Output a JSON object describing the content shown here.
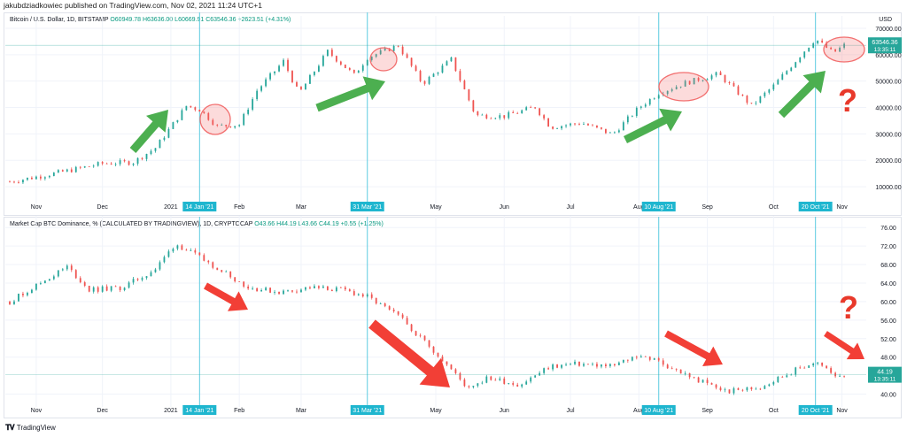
{
  "publisher": "jakubdziadkowiec published on TradingView.com, Nov 02, 2021 11:24 UTC+1",
  "footer": {
    "brand": "TradingView",
    "logo": "tradingview-logo-icon"
  },
  "colors": {
    "up": "#26a69a",
    "down": "#ef5350",
    "vline": "#5ccbe0",
    "tag_bg": "#1fb6cf",
    "arrow_green": "#4caf50",
    "arrow_red": "#f23f36",
    "circle": "#f26f6f",
    "question": "#e8392b"
  },
  "chart_data": [
    {
      "type": "candlestick",
      "title": "Bitcoin / U.S. Dollar, 1D, BITSTAMP",
      "ohlc": {
        "open": "O60949.78",
        "high": "H63636.00",
        "low": "L60669.91",
        "close": "C63546.36",
        "change": "+2623.51 (+4.31%)"
      },
      "yaxis_unit": "USD",
      "ylim": [
        5000,
        72000
      ],
      "yticks": [
        "70000.00",
        "60000.00",
        "50000.00",
        "40000.00",
        "30000.00",
        "20000.00",
        "10000.00"
      ],
      "ytick_values": [
        70000,
        60000,
        50000,
        40000,
        30000,
        20000,
        10000
      ],
      "last_price": {
        "value": "63546.36",
        "time": "13:35:11"
      },
      "xticks": [
        "Nov",
        "Dec",
        "2021",
        "Feb",
        "Mar",
        "May",
        "Jun",
        "Jul",
        "Aug",
        "Sep",
        "Oct",
        "Nov"
      ],
      "date_tags": [
        "14 Jan '21",
        "31 Mar '21",
        "10 Aug '21",
        "20 Oct '21"
      ],
      "series_close": [
        {
          "date": "2020-10-20",
          "close": 11900
        },
        {
          "date": "2020-11-01",
          "close": 13700
        },
        {
          "date": "2020-11-15",
          "close": 16000
        },
        {
          "date": "2020-12-01",
          "close": 18800
        },
        {
          "date": "2020-12-15",
          "close": 19300
        },
        {
          "date": "2020-12-25",
          "close": 24700
        },
        {
          "date": "2021-01-08",
          "close": 40600
        },
        {
          "date": "2021-01-14",
          "close": 39200
        },
        {
          "date": "2021-01-22",
          "close": 32900
        },
        {
          "date": "2021-02-01",
          "close": 33500
        },
        {
          "date": "2021-02-09",
          "close": 46400
        },
        {
          "date": "2021-02-21",
          "close": 57500
        },
        {
          "date": "2021-02-28",
          "close": 45200
        },
        {
          "date": "2021-03-13",
          "close": 61200
        },
        {
          "date": "2021-03-25",
          "close": 52300
        },
        {
          "date": "2021-03-31",
          "close": 58900
        },
        {
          "date": "2021-04-14",
          "close": 63500
        },
        {
          "date": "2021-04-25",
          "close": 49000
        },
        {
          "date": "2021-05-08",
          "close": 58200
        },
        {
          "date": "2021-05-19",
          "close": 37000
        },
        {
          "date": "2021-06-01",
          "close": 36700
        },
        {
          "date": "2021-06-15",
          "close": 40200
        },
        {
          "date": "2021-06-22",
          "close": 32500
        },
        {
          "date": "2021-07-06",
          "close": 34200
        },
        {
          "date": "2021-07-20",
          "close": 29800
        },
        {
          "date": "2021-08-01",
          "close": 39900
        },
        {
          "date": "2021-08-10",
          "close": 45500
        },
        {
          "date": "2021-08-22",
          "close": 49300
        },
        {
          "date": "2021-09-06",
          "close": 52700
        },
        {
          "date": "2021-09-21",
          "close": 40700
        },
        {
          "date": "2021-10-01",
          "close": 48200
        },
        {
          "date": "2021-10-15",
          "close": 61500
        },
        {
          "date": "2021-10-20",
          "close": 66000
        },
        {
          "date": "2021-10-28",
          "close": 60600
        },
        {
          "date": "2021-11-02",
          "close": 63546
        }
      ],
      "annotations": [
        {
          "type": "arrow",
          "color": "green"
        },
        {
          "type": "arrow",
          "color": "green"
        },
        {
          "type": "arrow",
          "color": "green"
        },
        {
          "type": "arrow",
          "color": "green"
        },
        {
          "type": "circle"
        },
        {
          "type": "circle"
        },
        {
          "type": "circle"
        },
        {
          "type": "circle"
        },
        {
          "type": "text",
          "text": "?"
        }
      ]
    },
    {
      "type": "candlestick",
      "title": "Market Cap BTC Dominance, % (CALCULATED BY TRADINGVIEW), 1D, CRYPTOCAP",
      "ohlc": {
        "open": "O43.66",
        "high": "H44.19",
        "low": "L43.66",
        "close": "C44.19",
        "change": "+0.55 (+1.25%)"
      },
      "ylim": [
        38,
        77
      ],
      "yticks": [
        "76.00",
        "72.00",
        "68.00",
        "64.00",
        "60.00",
        "56.00",
        "52.00",
        "48.00",
        "40.00"
      ],
      "ytick_values": [
        76,
        72,
        68,
        64,
        60,
        56,
        52,
        48,
        40
      ],
      "last_price": {
        "value": "44.19",
        "time": "13:35:11"
      },
      "xticks": [
        "Nov",
        "Dec",
        "2021",
        "Feb",
        "Mar",
        "May",
        "Jun",
        "Jul",
        "Aug",
        "Sep",
        "Oct",
        "Nov"
      ],
      "date_tags": [
        "14 Jan '21",
        "31 Mar '21",
        "10 Aug '21",
        "20 Oct '21"
      ],
      "series_close": [
        {
          "date": "2020-10-20",
          "close": 60
        },
        {
          "date": "2020-11-01",
          "close": 63.5
        },
        {
          "date": "2020-11-15",
          "close": 67.5
        },
        {
          "date": "2020-11-25",
          "close": 62.5
        },
        {
          "date": "2020-12-10",
          "close": 63
        },
        {
          "date": "2020-12-25",
          "close": 67
        },
        {
          "date": "2021-01-03",
          "close": 72.5
        },
        {
          "date": "2021-01-14",
          "close": 69.5
        },
        {
          "date": "2021-01-25",
          "close": 66.5
        },
        {
          "date": "2021-02-05",
          "close": 63
        },
        {
          "date": "2021-02-20",
          "close": 62
        },
        {
          "date": "2021-03-05",
          "close": 63
        },
        {
          "date": "2021-03-20",
          "close": 62.5
        },
        {
          "date": "2021-03-31",
          "close": 61
        },
        {
          "date": "2021-04-15",
          "close": 56.5
        },
        {
          "date": "2021-05-01",
          "close": 49
        },
        {
          "date": "2021-05-15",
          "close": 41.5
        },
        {
          "date": "2021-05-25",
          "close": 43.5
        },
        {
          "date": "2021-06-08",
          "close": 42
        },
        {
          "date": "2021-06-22",
          "close": 46
        },
        {
          "date": "2021-07-05",
          "close": 46.5
        },
        {
          "date": "2021-07-20",
          "close": 46
        },
        {
          "date": "2021-08-01",
          "close": 48.5
        },
        {
          "date": "2021-08-10",
          "close": 47
        },
        {
          "date": "2021-08-25",
          "close": 43.5
        },
        {
          "date": "2021-09-10",
          "close": 40.5
        },
        {
          "date": "2021-09-25",
          "close": 41.5
        },
        {
          "date": "2021-10-10",
          "close": 45
        },
        {
          "date": "2021-10-20",
          "close": 47
        },
        {
          "date": "2021-10-28",
          "close": 44.2
        },
        {
          "date": "2021-11-02",
          "close": 44.19
        }
      ],
      "annotations": [
        {
          "type": "arrow",
          "color": "red"
        },
        {
          "type": "arrow",
          "color": "red"
        },
        {
          "type": "arrow",
          "color": "red"
        },
        {
          "type": "arrow",
          "color": "red"
        },
        {
          "type": "text",
          "text": "?"
        }
      ]
    }
  ]
}
